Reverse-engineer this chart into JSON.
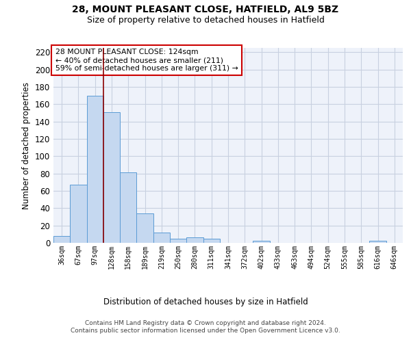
{
  "title1": "28, MOUNT PLEASANT CLOSE, HATFIELD, AL9 5BZ",
  "title2": "Size of property relative to detached houses in Hatfield",
  "xlabel": "Distribution of detached houses by size in Hatfield",
  "ylabel": "Number of detached properties",
  "categories": [
    "36sqm",
    "67sqm",
    "97sqm",
    "128sqm",
    "158sqm",
    "189sqm",
    "219sqm",
    "250sqm",
    "280sqm",
    "311sqm",
    "341sqm",
    "372sqm",
    "402sqm",
    "433sqm",
    "463sqm",
    "494sqm",
    "524sqm",
    "555sqm",
    "585sqm",
    "616sqm",
    "646sqm"
  ],
  "values": [
    8,
    67,
    170,
    151,
    81,
    34,
    12,
    5,
    6,
    5,
    0,
    0,
    2,
    0,
    0,
    0,
    0,
    0,
    0,
    2,
    0
  ],
  "bar_color": "#c5d8f0",
  "bar_edge_color": "#5b9bd5",
  "grid_color": "#c8d0e0",
  "background_color": "#eef2fa",
  "vline_index": 3,
  "vline_color": "#8b0000",
  "annotation_text": "28 MOUNT PLEASANT CLOSE: 124sqm\n← 40% of detached houses are smaller (211)\n59% of semi-detached houses are larger (311) →",
  "annotation_box_color": "#ffffff",
  "annotation_box_edge": "#cc0000",
  "footer": "Contains HM Land Registry data © Crown copyright and database right 2024.\nContains public sector information licensed under the Open Government Licence v3.0.",
  "ylim": [
    0,
    225
  ],
  "yticks": [
    0,
    20,
    40,
    60,
    80,
    100,
    120,
    140,
    160,
    180,
    200,
    220
  ]
}
